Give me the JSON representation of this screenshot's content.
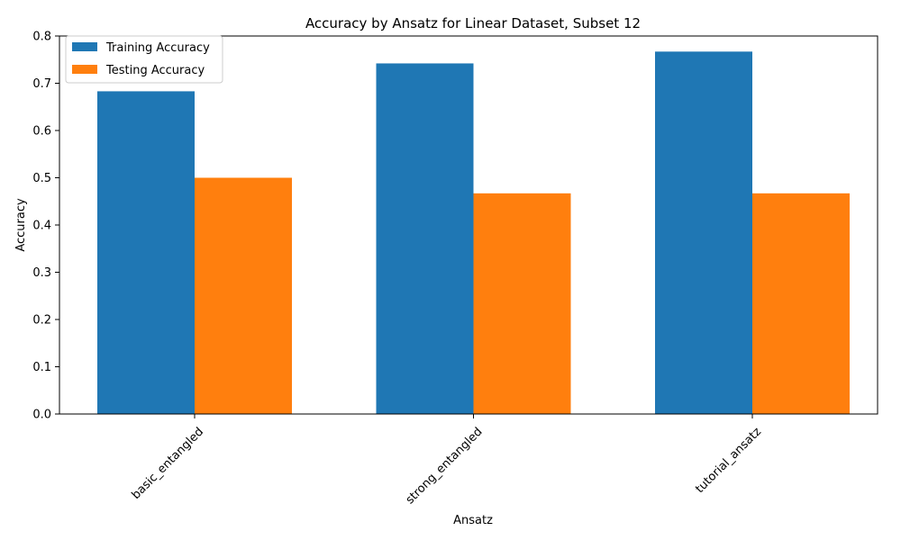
{
  "chart_data": {
    "type": "bar",
    "title": "Accuracy by Ansatz for Linear Dataset, Subset 12",
    "xlabel": "Ansatz",
    "ylabel": "Accuracy",
    "categories": [
      "basic_entangled",
      "strong_entangled",
      "tutorial_ansatz"
    ],
    "series": [
      {
        "name": "Training Accuracy",
        "values": [
          0.683,
          0.742,
          0.767
        ],
        "color": "#1f77b4"
      },
      {
        "name": "Testing Accuracy",
        "values": [
          0.5,
          0.467,
          0.467
        ],
        "color": "#ff7f0e"
      }
    ],
    "ylim": [
      0,
      0.8
    ],
    "yticks": [
      "0.0",
      "0.1",
      "0.2",
      "0.3",
      "0.4",
      "0.5",
      "0.6",
      "0.7",
      "0.8"
    ],
    "grid": false,
    "legend_position": "top-left",
    "x_tick_rotation": 45
  }
}
